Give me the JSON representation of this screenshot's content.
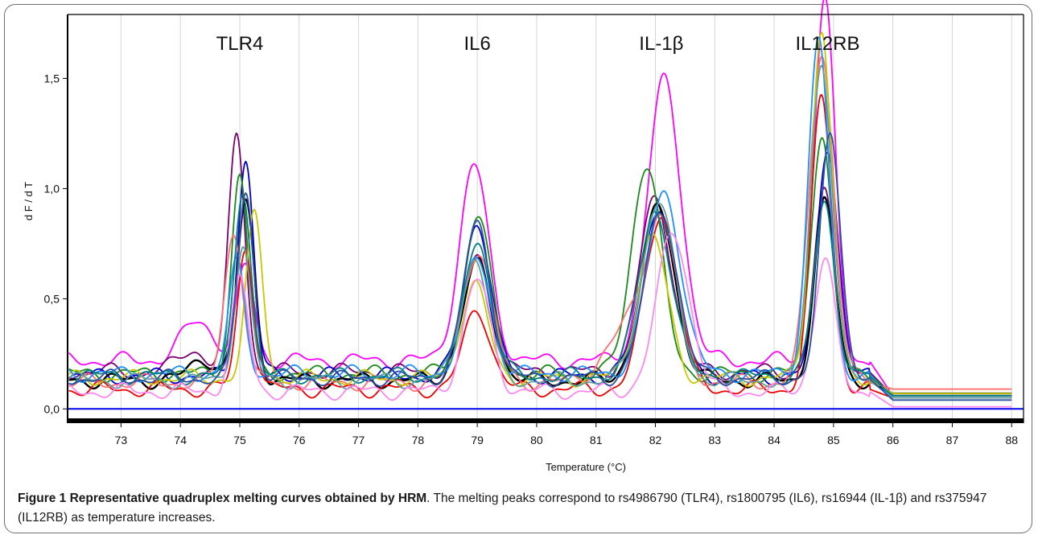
{
  "chart_data": {
    "type": "line",
    "ylabel": "d F / d T",
    "xlabel": "Temperature (°C)",
    "xlim": [
      72.1,
      88.2
    ],
    "ylim": [
      -0.05,
      1.79
    ],
    "x_ticks": [
      73,
      74,
      75,
      76,
      77,
      78,
      79,
      80,
      81,
      82,
      83,
      84,
      85,
      86,
      87,
      88
    ],
    "x_tick_labels": [
      "73",
      "74",
      "75",
      "76",
      "77",
      "78",
      "79",
      "80",
      "81",
      "82",
      "83",
      "84",
      "85",
      "86",
      "87",
      "88"
    ],
    "y_ticks": [
      0.0,
      0.5,
      1.0,
      1.5
    ],
    "y_tick_labels": [
      "0,0",
      "0,5",
      "1,0",
      "1,5"
    ],
    "grid": "vertical",
    "baseline": {
      "y": 0.0,
      "color": "#0000ee"
    },
    "peak_labels": [
      {
        "text": "TLR4",
        "x": 75.0
      },
      {
        "text": "IL6",
        "x": 79.0
      },
      {
        "text": "IL-1β",
        "x": 82.1
      },
      {
        "text": "IL12RB",
        "x": 84.9
      }
    ],
    "series": [
      {
        "color": "#ff00ff",
        "baseline": 0.22,
        "bumps": [
          [
            74.3,
            0.18,
            0.6
          ],
          [
            75.1,
            0.42,
            0.32
          ],
          [
            78.95,
            0.88,
            0.55
          ],
          [
            82.15,
            1.27,
            0.62
          ],
          [
            84.85,
            1.65,
            0.38
          ]
        ],
        "tail": 0.04
      },
      {
        "color": "#7a0070",
        "baseline": 0.17,
        "bumps": [
          [
            74.2,
            0.1,
            0.5
          ],
          [
            74.95,
            1.08,
            0.3
          ],
          [
            79.0,
            0.52,
            0.5
          ],
          [
            82.0,
            0.78,
            0.6
          ],
          [
            84.85,
            0.8,
            0.38
          ]
        ],
        "tail": 0.04
      },
      {
        "color": "#0000cc",
        "baseline": 0.15,
        "bumps": [
          [
            75.1,
            0.98,
            0.3
          ],
          [
            79.0,
            0.7,
            0.5
          ],
          [
            82.05,
            0.78,
            0.6
          ],
          [
            84.9,
            1.05,
            0.38
          ]
        ],
        "tail": 0.03
      },
      {
        "color": "#1a8a1a",
        "baseline": 0.16,
        "bumps": [
          [
            75.0,
            0.9,
            0.3
          ],
          [
            79.0,
            0.72,
            0.5
          ],
          [
            81.85,
            0.96,
            0.55
          ],
          [
            84.8,
            1.1,
            0.38
          ]
        ],
        "tail": 0.04
      },
      {
        "color": "#000000",
        "baseline": 0.13,
        "bumps": [
          [
            74.4,
            0.1,
            0.5
          ],
          [
            75.1,
            0.8,
            0.32
          ],
          [
            79.0,
            0.52,
            0.55
          ],
          [
            82.05,
            0.78,
            0.62
          ],
          [
            84.85,
            0.8,
            0.38
          ]
        ],
        "tail": 0.05
      },
      {
        "color": "#ee0000",
        "baseline": 0.09,
        "bumps": [
          [
            75.1,
            0.64,
            0.3
          ],
          [
            79.0,
            0.36,
            0.5
          ],
          [
            82.1,
            0.8,
            0.6
          ],
          [
            84.8,
            1.33,
            0.38
          ]
        ],
        "tail": 0.03
      },
      {
        "color": "#ff7070",
        "baseline": 0.12,
        "bumps": [
          [
            74.9,
            0.68,
            0.35
          ],
          [
            79.0,
            0.6,
            0.55
          ],
          [
            81.5,
            0.22,
            0.8
          ],
          [
            82.1,
            0.7,
            0.6
          ],
          [
            84.8,
            1.5,
            0.45
          ]
        ],
        "tail": 0.07
      },
      {
        "color": "#c8c800",
        "baseline": 0.14,
        "bumps": [
          [
            75.25,
            0.74,
            0.3
          ],
          [
            78.95,
            0.42,
            0.5
          ],
          [
            81.95,
            0.64,
            0.55
          ],
          [
            84.8,
            1.57,
            0.38
          ]
        ],
        "tail": 0.05
      },
      {
        "color": "#1e90ff",
        "baseline": 0.16,
        "bumps": [
          [
            74.95,
            0.5,
            0.3
          ],
          [
            79.0,
            0.52,
            0.5
          ],
          [
            82.15,
            0.82,
            0.62
          ],
          [
            84.75,
            1.52,
            0.38
          ]
        ],
        "tail": 0.03
      },
      {
        "color": "#008080",
        "baseline": 0.15,
        "bumps": [
          [
            75.05,
            0.86,
            0.3
          ],
          [
            79.0,
            0.62,
            0.5
          ],
          [
            82.0,
            0.75,
            0.6
          ],
          [
            84.85,
            0.78,
            0.38
          ]
        ],
        "tail": 0.04
      },
      {
        "color": "#5f9ea0",
        "baseline": 0.13,
        "bumps": [
          [
            75.05,
            0.6,
            0.3
          ],
          [
            78.95,
            0.55,
            0.5
          ],
          [
            82.05,
            0.82,
            0.6
          ],
          [
            84.8,
            1.45,
            0.4
          ]
        ],
        "tail": 0.03
      },
      {
        "color": "#ff88ee",
        "baseline": 0.08,
        "bumps": [
          [
            75.0,
            0.5,
            0.32
          ],
          [
            79.0,
            0.5,
            0.5
          ],
          [
            82.3,
            0.72,
            0.6
          ],
          [
            84.85,
            0.6,
            0.38
          ]
        ],
        "tail": -0.01
      },
      {
        "color": "#2f4f9f",
        "baseline": 0.14,
        "bumps": [
          [
            75.1,
            0.85,
            0.3
          ],
          [
            79.0,
            0.7,
            0.5
          ],
          [
            82.1,
            0.76,
            0.6
          ],
          [
            84.95,
            1.1,
            0.38
          ]
        ],
        "tail": 0.02
      }
    ]
  },
  "caption": {
    "bold": "Figure 1 Representative quadruplex melting curves obtained by HRM",
    "text": ". The melting peaks correspond to rs4986790 (TLR4), rs1800795 (IL6), rs16944 (IL-1β) and rs375947 (IL12RB) as temperature increases."
  }
}
